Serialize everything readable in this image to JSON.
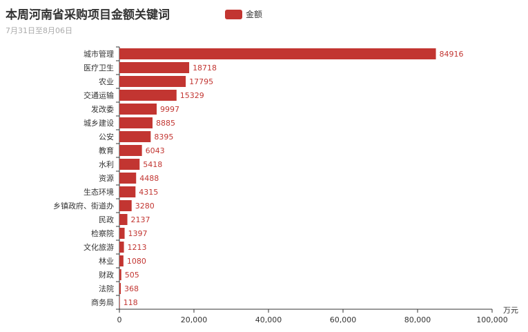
{
  "chart_data": {
    "type": "bar",
    "orientation": "horizontal",
    "title": "本周河南省采购项目金额关键词",
    "subtitle": "7月31日至8月06日",
    "xlabel": "万元",
    "ylabel": "",
    "xlim": [
      0,
      100000
    ],
    "x_ticks": [
      "0",
      "20,000",
      "40,000",
      "60,000",
      "80,000",
      "100,000"
    ],
    "legend": {
      "position": "top-center",
      "label": "金额"
    },
    "bar_color": "#c23531",
    "categories": [
      "城市管理",
      "医疗卫生",
      "农业",
      "交通运输",
      "发改委",
      "城乡建设",
      "公安",
      "教育",
      "水利",
      "资源",
      "生态环境",
      "乡镇政府、街道办",
      "民政",
      "检察院",
      "文化旅游",
      "林业",
      "财政",
      "法院",
      "商务局"
    ],
    "series": [
      {
        "name": "金额",
        "values": [
          84916,
          18718,
          17795,
          15329,
          9997,
          8885,
          8395,
          6043,
          5418,
          4488,
          4315,
          3280,
          2137,
          1397,
          1213,
          1080,
          505,
          368,
          118
        ]
      }
    ]
  }
}
